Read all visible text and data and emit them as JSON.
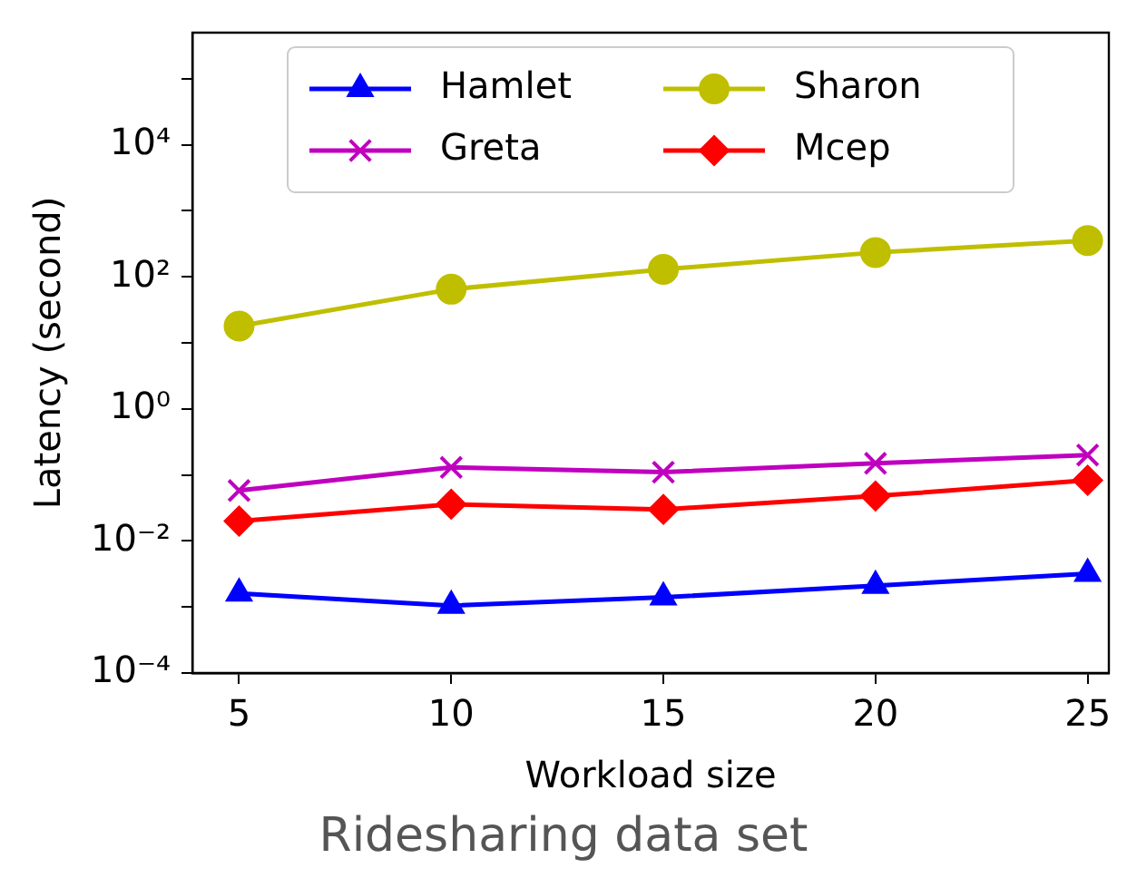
{
  "chart_data": {
    "type": "line",
    "xlabel": "Workload size",
    "ylabel": "Latency (second)",
    "annotations": [
      "Ridesharing data set"
    ],
    "x": [
      5,
      10,
      15,
      20,
      25
    ],
    "xlim": [
      3.9,
      25.5
    ],
    "xticks": [
      5,
      10,
      15,
      20,
      25
    ],
    "log": "y",
    "ylim": [
      0.0001,
      500000
    ],
    "yticks": [
      {
        "value": 0.0001,
        "label": "10⁻⁴"
      },
      {
        "value": 0.001,
        "label": null
      },
      {
        "value": 0.01,
        "label": "10⁻²"
      },
      {
        "value": 0.1,
        "label": null
      },
      {
        "value": 1,
        "label": "10⁰"
      },
      {
        "value": 10,
        "label": null
      },
      {
        "value": 100,
        "label": "10²"
      },
      {
        "value": 1000,
        "label": null
      },
      {
        "value": 10000,
        "label": "10⁴"
      },
      {
        "value": 100000,
        "label": null
      }
    ],
    "grid": false,
    "legend": "top",
    "line_style": "solid",
    "series": [
      {
        "name": "Hamlet",
        "color": "#0000ff",
        "marker": "triangle",
        "values": [
          0.0016,
          0.00105,
          0.0014,
          0.0021,
          0.0032
        ]
      },
      {
        "name": "Greta",
        "color": "#bf00bf",
        "marker": "cross",
        "values": [
          0.058,
          0.13,
          0.11,
          0.15,
          0.2
        ]
      },
      {
        "name": "Sharon",
        "color": "#bfbf00",
        "marker": "circle",
        "values": [
          18,
          65,
          130,
          234,
          355
        ]
      },
      {
        "name": "Mcep",
        "color": "#ff0000",
        "marker": "diamond",
        "values": [
          0.02,
          0.036,
          0.03,
          0.048,
          0.083
        ]
      }
    ]
  }
}
